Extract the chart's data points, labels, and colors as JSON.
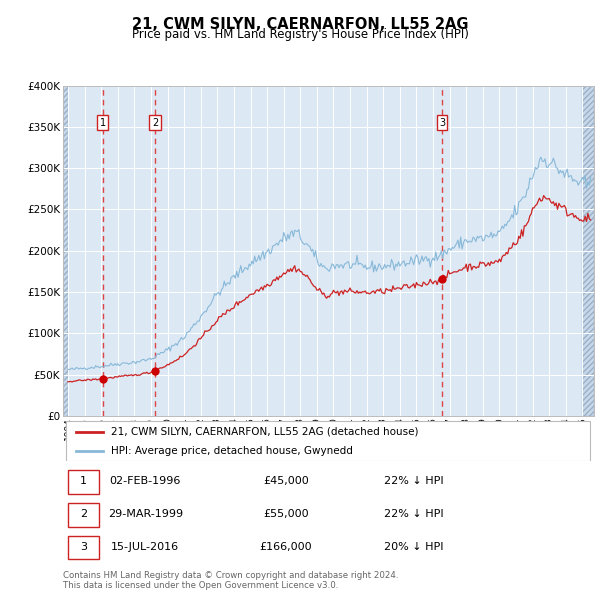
{
  "title": "21, CWM SILYN, CAERNARFON, LL55 2AG",
  "subtitle": "Price paid vs. HM Land Registry's House Price Index (HPI)",
  "legend_red": "21, CWM SILYN, CAERNARFON, LL55 2AG (detached house)",
  "legend_blue": "HPI: Average price, detached house, Gwynedd",
  "footer1": "Contains HM Land Registry data © Crown copyright and database right 2024.",
  "footer2": "This data is licensed under the Open Government Licence v3.0.",
  "table_labels": [
    "02-FEB-1996",
    "29-MAR-1999",
    "15-JUL-2016"
  ],
  "table_prices": [
    "£45,000",
    "£55,000",
    "£166,000"
  ],
  "table_pcts": [
    "22% ↓ HPI",
    "22% ↓ HPI",
    "20% ↓ HPI"
  ],
  "ylim": [
    0,
    400000
  ],
  "yticks": [
    0,
    50000,
    100000,
    150000,
    200000,
    250000,
    300000,
    350000,
    400000
  ],
  "bg_color": "#dce9f5",
  "hatch_color": "#c8d8e8",
  "grid_color": "#ffffff",
  "red_line_color": "#cc2222",
  "blue_line_color": "#88b8d8",
  "dot_color": "#cc0000",
  "dashed_line_color": "#dd4444",
  "box_color": "#cc2222",
  "sale_yf": [
    1996.085,
    1999.245,
    2016.54
  ],
  "sale_prices": [
    45000,
    55000,
    166000
  ],
  "xstart": 1993.7,
  "xend": 2025.7
}
